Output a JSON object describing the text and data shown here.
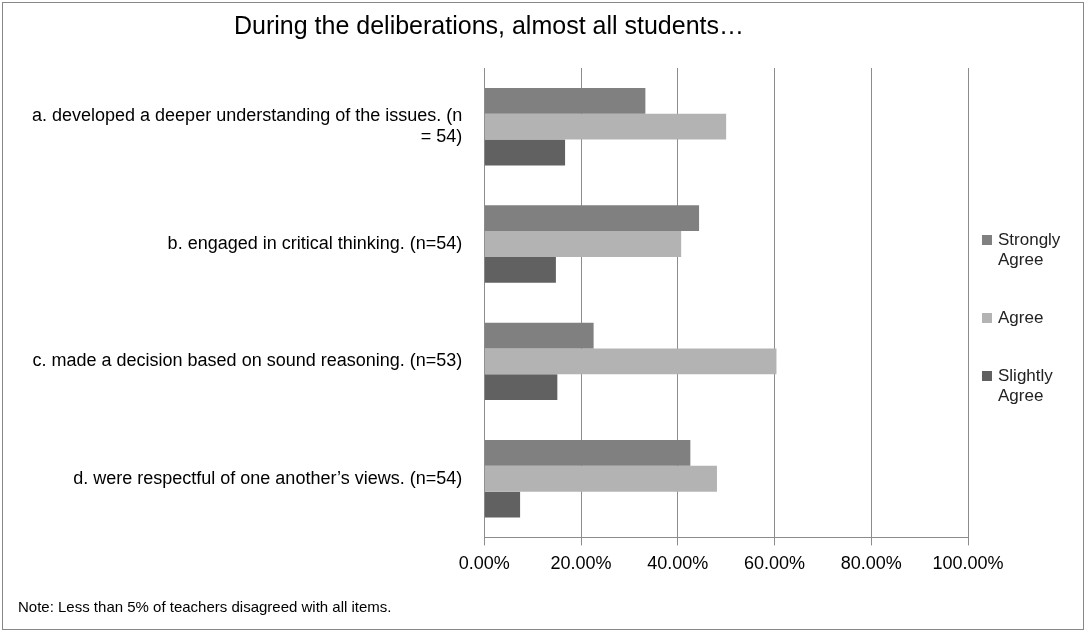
{
  "chart_data": {
    "type": "bar",
    "orientation": "horizontal",
    "title": "During the deliberations, almost all students…",
    "categories": [
      "a. developed a deeper understanding of the issues. (n = 54)",
      "b. engaged in critical thinking. (n=54)",
      "c. made a decision based on sound reasoning. (n=53)",
      "d. were respectful of one another’s views. (n=54)"
    ],
    "series": [
      {
        "name": "Strongly Agree",
        "color": "#808080",
        "values": [
          33.3,
          44.4,
          22.6,
          42.6
        ]
      },
      {
        "name": "Agree",
        "color": "#b3b3b3",
        "values": [
          50.0,
          40.7,
          60.4,
          48.1
        ]
      },
      {
        "name": "Slightly Agree",
        "color": "#616161",
        "values": [
          16.7,
          14.8,
          15.1,
          7.4
        ]
      }
    ],
    "xlim": [
      0,
      100
    ],
    "xticks": [
      {
        "value": 0,
        "label": "0.00%"
      },
      {
        "value": 20,
        "label": "20.00%"
      },
      {
        "value": 40,
        "label": "40.00%"
      },
      {
        "value": 60,
        "label": "60.00%"
      },
      {
        "value": 80,
        "label": "80.00%"
      },
      {
        "value": 100,
        "label": "100.00%"
      }
    ],
    "grid": "x",
    "legend": "right",
    "annotations": [
      "Note: Less than 5% of teachers disagreed with all items."
    ]
  }
}
